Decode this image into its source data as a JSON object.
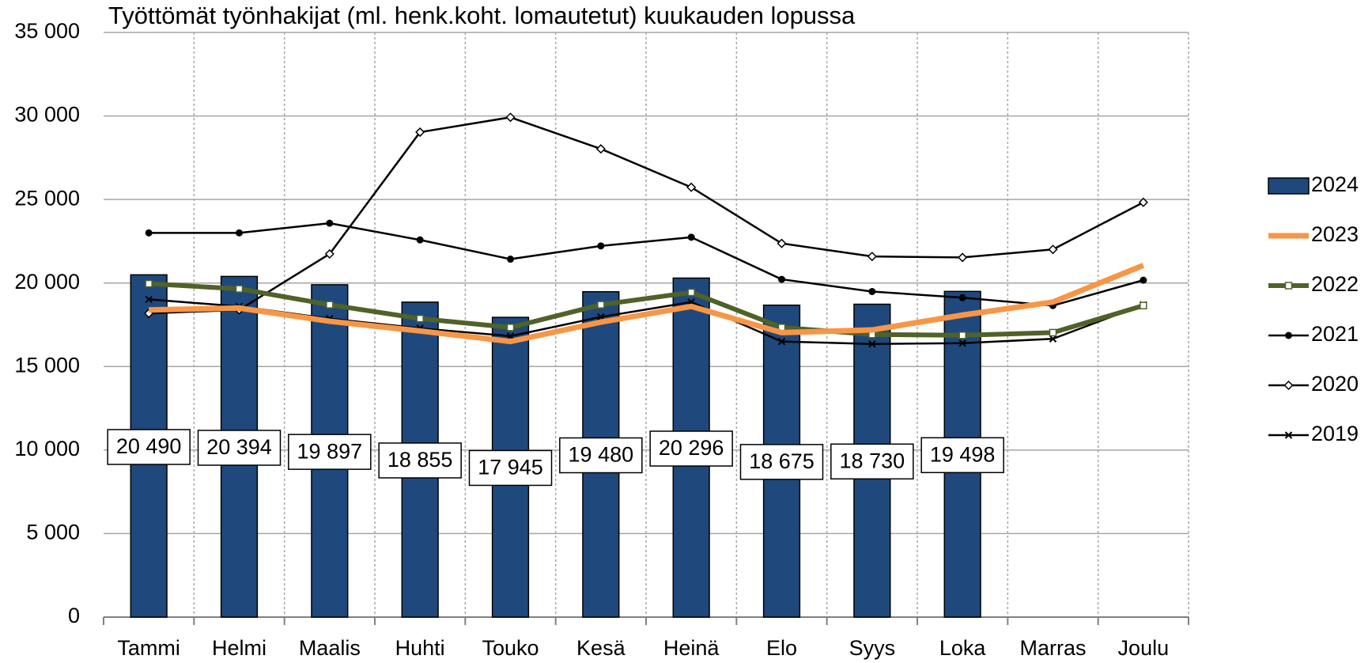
{
  "chart_data": {
    "type": "bar-line",
    "title": "Työttömät työnhakijat (ml. henk.koht. lomautetut) kuukauden lopussa",
    "categories": [
      "Tammi",
      "Helmi",
      "Maalis",
      "Huhti",
      "Touko",
      "Kesä",
      "Heinä",
      "Elo",
      "Syys",
      "Loka",
      "Marras",
      "Joulu"
    ],
    "ylim": [
      0,
      35000
    ],
    "yticks": [
      0,
      {
        "value": 5000,
        "label": "5 000"
      },
      {
        "value": 10000,
        "label": "10 000"
      },
      {
        "value": 15000,
        "label": "15 000"
      },
      {
        "value": 20000,
        "label": "20 000"
      },
      {
        "value": 25000,
        "label": "25 000"
      },
      {
        "value": 30000,
        "label": "30 000"
      },
      {
        "value": 35000,
        "label": "35 000"
      }
    ],
    "grid": true,
    "legend": "right",
    "series": [
      {
        "name": "2024",
        "type": "bar",
        "color": "#1f497d",
        "values": [
          20490,
          20394,
          19897,
          18855,
          17945,
          19480,
          20296,
          18675,
          18730,
          19498,
          null,
          null
        ],
        "value_labels": [
          "20 490",
          "20 394",
          "19 897",
          "18 855",
          "17 945",
          "19 480",
          "20 296",
          "18 675",
          "18 730",
          "19 498",
          null,
          null
        ]
      },
      {
        "name": "2023",
        "type": "line",
        "color": "#f79646",
        "width": 7,
        "marker": "none",
        "values": [
          18390,
          18500,
          17710,
          17130,
          16500,
          17660,
          18600,
          17030,
          17190,
          18080,
          18860,
          21060
        ]
      },
      {
        "name": "2022",
        "type": "line",
        "color": "#4f6228",
        "width": 6,
        "marker": "square",
        "values": [
          19960,
          19650,
          18700,
          17870,
          17340,
          18700,
          19440,
          17340,
          16920,
          16870,
          17030,
          18650
        ]
      },
      {
        "name": "2021",
        "type": "line",
        "color": "#000000",
        "width": 2.5,
        "marker": "circle",
        "values": [
          23000,
          23000,
          23580,
          22580,
          21430,
          22220,
          22740,
          20220,
          19490,
          19120,
          18650,
          20170
        ]
      },
      {
        "name": "2020",
        "type": "line",
        "color": "#000000",
        "width": 2.5,
        "marker": "diamond",
        "values": [
          18180,
          18390,
          21740,
          29030,
          29920,
          28030,
          25730,
          22370,
          21590,
          21530,
          22010,
          24830
        ]
      },
      {
        "name": "2019",
        "type": "line",
        "color": "#000000",
        "width": 2.5,
        "marker": "x",
        "values": [
          19020,
          18600,
          17870,
          17290,
          16820,
          17970,
          18860,
          16500,
          16350,
          16400,
          16660,
          18700
        ]
      }
    ]
  }
}
